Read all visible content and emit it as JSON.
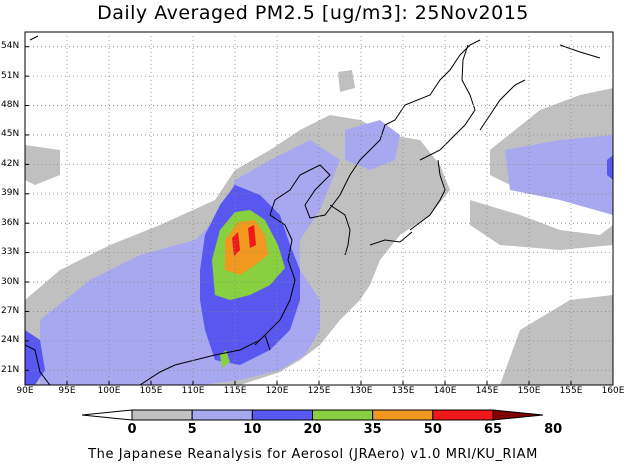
{
  "title": "Daily Averaged PM2.5 [ug/m3]: 25Nov2015",
  "footer": "The Japanese Reanalysis for Aerosol (JRAero) v1.0 MRI/KU_RIAM",
  "map": {
    "lon_min": 90,
    "lon_max": 160,
    "lat_min": 19.5,
    "lat_max": 55.5,
    "grid": "dotted",
    "lat_labels": [
      "54N",
      "51N",
      "48N",
      "45N",
      "42N",
      "39N",
      "36N",
      "33N",
      "30N",
      "27N",
      "24N",
      "21N"
    ],
    "lat_values": [
      54,
      51,
      48,
      45,
      42,
      39,
      36,
      33,
      30,
      27,
      24,
      21
    ],
    "lon_labels": [
      "90E",
      "95E",
      "100E",
      "105E",
      "110E",
      "115E",
      "120E",
      "125E",
      "130E",
      "135E",
      "140E",
      "145E",
      "150E",
      "155E",
      "160E"
    ],
    "lon_values": [
      90,
      95,
      100,
      105,
      110,
      115,
      120,
      125,
      130,
      135,
      140,
      145,
      150,
      155,
      160
    ]
  },
  "colorbar": {
    "labels": [
      "0",
      "5",
      "10",
      "20",
      "35",
      "50",
      "65",
      "80"
    ],
    "colors": [
      "#ffffff",
      "#c0c0c0",
      "#a8a8f0",
      "#5858f0",
      "#88d040",
      "#f09820",
      "#f01818",
      "#800000"
    ]
  }
}
